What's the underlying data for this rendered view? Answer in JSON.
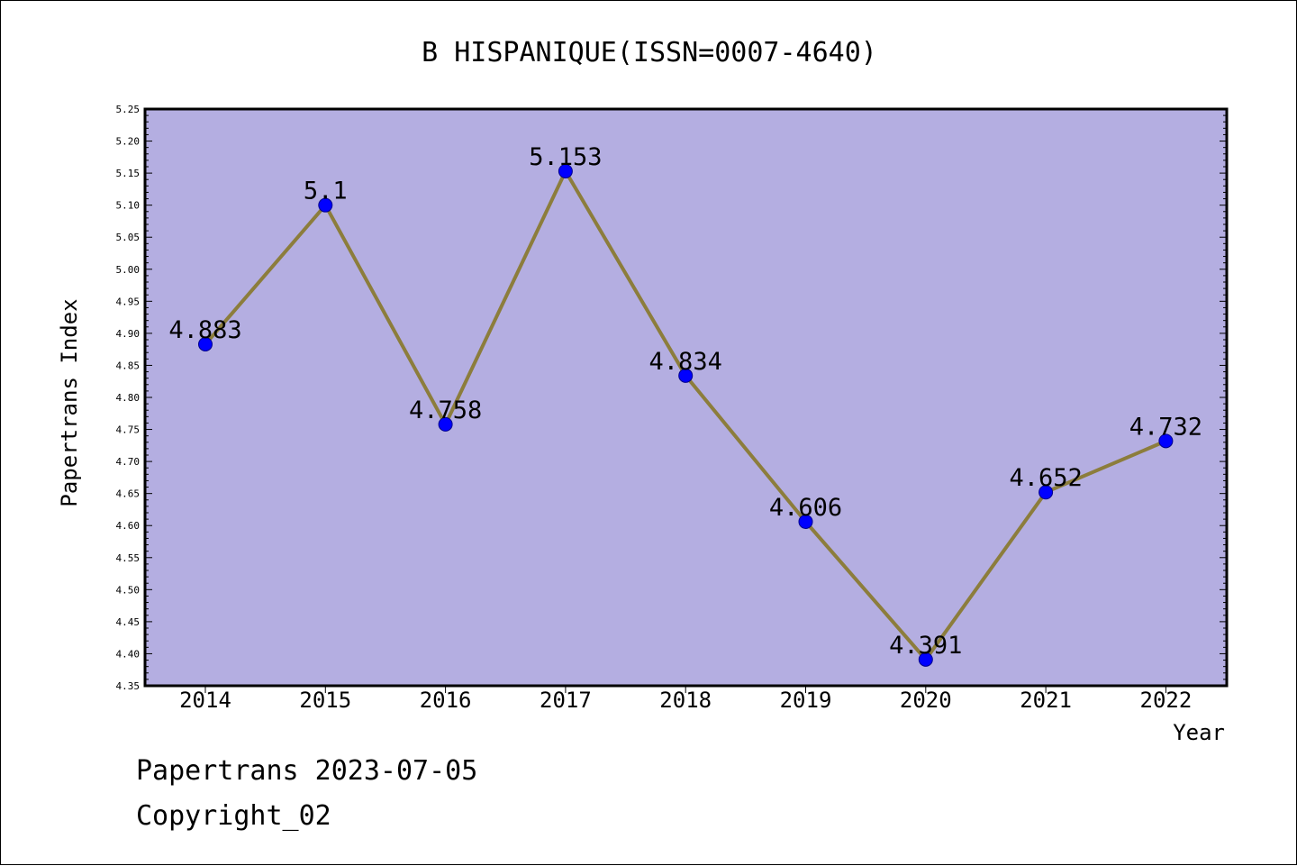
{
  "chart_data": {
    "type": "line",
    "title": "B HISPANIQUE(ISSN=0007-4640)",
    "xlabel": "Year",
    "ylabel": "Papertrans Index",
    "categories": [
      "2014",
      "2015",
      "2016",
      "2017",
      "2018",
      "2019",
      "2020",
      "2021",
      "2022"
    ],
    "series": [
      {
        "values": [
          4.883,
          5.1,
          4.758,
          5.153,
          4.834,
          4.606,
          4.391,
          4.652,
          4.732
        ],
        "labels": [
          "4.883",
          "5.1",
          "4.758",
          "5.153",
          "4.834",
          "4.606",
          "4.391",
          "4.652",
          "4.732"
        ]
      }
    ],
    "ylim": [
      4.35,
      5.25
    ],
    "yticks": [
      "4.35",
      "4.40",
      "4.45",
      "4.50",
      "4.55",
      "4.60",
      "4.65",
      "4.70",
      "4.75",
      "4.80",
      "4.85",
      "4.90",
      "4.95",
      "5.00",
      "5.05",
      "5.10",
      "5.15",
      "5.20",
      "5.25"
    ],
    "grid": false,
    "legend": "none",
    "colors": {
      "plot_background": "#b4aee1",
      "line": "#8c7d3c",
      "marker": "#0000ff",
      "marker_edge": "#00008b"
    }
  },
  "footer": {
    "line1": "Papertrans 2023-07-05",
    "line2": "Copyright_02"
  }
}
